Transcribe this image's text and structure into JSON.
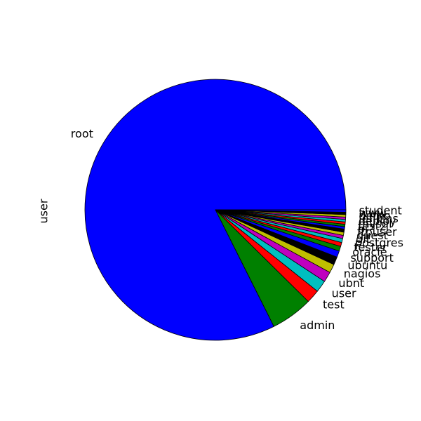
{
  "chart_data": {
    "type": "pie",
    "ylabel": "user",
    "start_angle_deg": 0,
    "direction": "counterclockwise",
    "categories": [
      "root",
      "admin",
      "test",
      "user",
      "ubnt",
      "nagios",
      "ubuntu",
      "support",
      "oracle",
      "tester",
      "postgres",
      "git",
      "guest",
      "ftpuser",
      "pi",
      "test2",
      "mysql",
      "deploy",
      "jenkins",
      "demo",
      "www",
      "student"
    ],
    "values": [
      838,
      53,
      17,
      15,
      13,
      11,
      10,
      8,
      6,
      5,
      5,
      4,
      4,
      4,
      3,
      3,
      3,
      3,
      3,
      3,
      3,
      3
    ],
    "colors": [
      "#0000ff",
      "#008000",
      "#ff0000",
      "#00bfbf",
      "#bf00bf",
      "#bfbf00",
      "#000000",
      "#0000ff",
      "#008000",
      "#ff0000",
      "#00bfbf",
      "#bf00bf",
      "#bfbf00",
      "#000000",
      "#0000ff",
      "#008000",
      "#ff0000",
      "#00bfbf",
      "#bf00bf",
      "#bfbf00",
      "#000000",
      "#0000ff"
    ]
  }
}
